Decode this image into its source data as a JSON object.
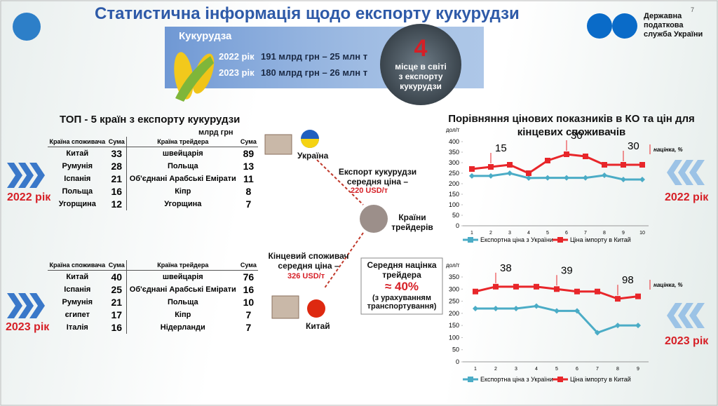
{
  "header": {
    "title": "Статистична інформація щодо експорту кукурудзи",
    "page": "7",
    "org": "Державна податкова служба України"
  },
  "summary": {
    "product": "Кукурудза",
    "rows": [
      {
        "year": "2022 рік",
        "text": "191 млрд грн – 25 млн т"
      },
      {
        "year": "2023 рік",
        "text": "180 млрд грн – 26 млн т"
      }
    ],
    "rank": "4",
    "rank_text": "місце в світі з експорту кукурудзи"
  },
  "top5": {
    "title": "ТОП - 5 країн з експорту кукурудзи",
    "unit": "млрд грн",
    "tables": [
      {
        "year": "2022 рік",
        "headers": [
          "Країна споживача",
          "Сума",
          "Країна трейдера",
          "Сума"
        ],
        "rows": [
          [
            "Китай",
            33,
            "швейцарія",
            89
          ],
          [
            "Румунія",
            28,
            "Польща",
            13
          ],
          [
            "Іспанія",
            21,
            "Об'єднані Арабські Емірати",
            11
          ],
          [
            "Польща",
            16,
            "Кіпр",
            8
          ],
          [
            "Угорщина",
            12,
            "Угорщина",
            7
          ]
        ]
      },
      {
        "year": "2023 рік",
        "headers": [
          "Країна споживача",
          "Сума",
          "Країна трейдера",
          "Сума"
        ],
        "rows": [
          [
            "Китай",
            40,
            "швейцарія",
            76
          ],
          [
            "Іспанія",
            25,
            "Об'єднані Арабські Емірати",
            16
          ],
          [
            "Румунія",
            21,
            "Польща",
            10
          ],
          [
            "єгипет",
            17,
            "Кіпр",
            7
          ],
          [
            "Італія",
            16,
            "Нідерланди",
            7
          ]
        ]
      }
    ]
  },
  "flow": {
    "origin": "Україна",
    "export_text": "Експорт кукурудзи середня ціна –",
    "export_price": "220 USD/т",
    "traders": "Країни трейдерів",
    "consumer_text": "Кінцевий споживач середня ціна –",
    "consumer_price": "326 USD/т",
    "destination": "Китай",
    "margin_title": "Середня націнка трейдера",
    "margin_value": "≈ 40%",
    "margin_note": "(з урахуванням транспортування)"
  },
  "chart_data": [
    {
      "type": "line",
      "title": "Порівняння цінових показників в КО та цін для кінцевих споживачів",
      "label": "2022 рік",
      "y_label": "дол/т",
      "categories": [
        "1",
        "2",
        "3",
        "4",
        "5",
        "6",
        "7",
        "8",
        "9",
        "10"
      ],
      "ylim": [
        0,
        400
      ],
      "yticks": [
        0,
        50,
        100,
        150,
        200,
        250,
        300,
        350,
        400
      ],
      "series": [
        {
          "name": "Експортна ціна з України",
          "color": "#4bacc6",
          "values": [
            237,
            237,
            250,
            227,
            228,
            228,
            228,
            240,
            220,
            220
          ]
        },
        {
          "name": "Ціна імпорту в Китай",
          "color": "#e8262a",
          "values": [
            270,
            280,
            290,
            250,
            310,
            340,
            330,
            290,
            290,
            290
          ]
        }
      ],
      "annotations": [
        {
          "at": "2",
          "text": "15"
        },
        {
          "at": "6",
          "text": "30"
        },
        {
          "at": "9",
          "text": "30"
        }
      ],
      "annotation_note": "націнка, %"
    },
    {
      "type": "line",
      "label": "2023 рік",
      "y_label": "дол/т",
      "categories": [
        "1",
        "2",
        "3",
        "4",
        "5",
        "6",
        "7",
        "8",
        "9"
      ],
      "ylim": [
        0,
        350
      ],
      "yticks": [
        0,
        50,
        100,
        150,
        200,
        250,
        300,
        350
      ],
      "series": [
        {
          "name": "Експортна ціна з України",
          "color": "#4bacc6",
          "values": [
            220,
            220,
            220,
            230,
            210,
            210,
            120,
            150,
            150
          ]
        },
        {
          "name": "Ціна імпорту в Китай",
          "color": "#e8262a",
          "values": [
            290,
            310,
            310,
            310,
            300,
            290,
            290,
            260,
            270
          ]
        }
      ],
      "annotations": [
        {
          "at": "2",
          "text": "38"
        },
        {
          "at": "5",
          "text": "39"
        },
        {
          "at": "8",
          "text": "98"
        }
      ],
      "annotation_note": "націнка, %"
    }
  ]
}
